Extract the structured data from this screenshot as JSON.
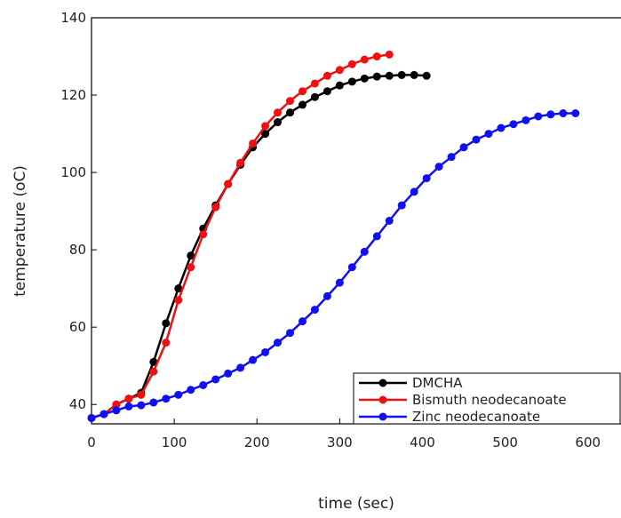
{
  "chart_data": {
    "type": "line",
    "xlabel": "time (sec)",
    "ylabel": "temperature (oC)",
    "xlim": [
      0,
      640
    ],
    "ylim": [
      35,
      140
    ],
    "xticks": [
      0,
      100,
      200,
      300,
      400,
      500,
      600
    ],
    "yticks": [
      40,
      60,
      80,
      100,
      120,
      140
    ],
    "legend": "lower right",
    "series": [
      {
        "name": "DMCHA",
        "color": "#000000",
        "x": [
          0,
          15,
          30,
          45,
          60,
          75,
          90,
          105,
          120,
          135,
          150,
          165,
          180,
          195,
          210,
          225,
          240,
          255,
          270,
          285,
          300,
          315,
          330,
          345,
          360,
          375,
          390,
          405
        ],
        "values": [
          36.5,
          37.5,
          40,
          41.5,
          43,
          51,
          61,
          70,
          78.5,
          85.5,
          91.5,
          97,
          102,
          106.5,
          110,
          113,
          115.5,
          117.5,
          119.5,
          121,
          122.5,
          123.5,
          124.3,
          124.8,
          125,
          125.2,
          125.2,
          125
        ]
      },
      {
        "name": "Bismuth neodecanoate",
        "color": "#ee1111",
        "x": [
          0,
          15,
          30,
          45,
          60,
          75,
          90,
          105,
          120,
          135,
          150,
          165,
          180,
          195,
          210,
          225,
          240,
          255,
          270,
          285,
          300,
          315,
          330,
          345,
          360
        ],
        "values": [
          36.5,
          37.5,
          40,
          41.5,
          42.5,
          48.5,
          56,
          67,
          75.5,
          84,
          91,
          97,
          102.5,
          107.5,
          112,
          115.5,
          118.5,
          121,
          123,
          125,
          126.5,
          128,
          129.2,
          130,
          130.5
        ]
      },
      {
        "name": "Zinc neodecanoate",
        "color": "#1111ee",
        "x": [
          0,
          15,
          30,
          45,
          60,
          75,
          90,
          105,
          120,
          135,
          150,
          165,
          180,
          195,
          210,
          225,
          240,
          255,
          270,
          285,
          300,
          315,
          330,
          345,
          360,
          375,
          390,
          405,
          420,
          435,
          450,
          465,
          480,
          495,
          510,
          525,
          540,
          555,
          570,
          585
        ],
        "values": [
          36.5,
          37.5,
          38.5,
          39.5,
          39.8,
          40.5,
          41.5,
          42.5,
          43.8,
          45,
          46.5,
          48,
          49.5,
          51.5,
          53.5,
          56,
          58.5,
          61.5,
          64.5,
          68,
          71.5,
          75.5,
          79.5,
          83.5,
          87.5,
          91.5,
          95,
          98.5,
          101.5,
          104,
          106.5,
          108.5,
          110,
          111.5,
          112.5,
          113.5,
          114.5,
          115,
          115.3,
          115.3
        ]
      }
    ]
  }
}
